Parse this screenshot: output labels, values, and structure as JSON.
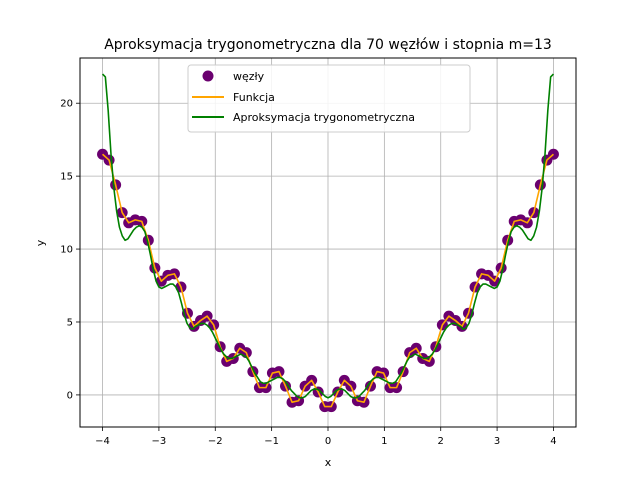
{
  "chart_data": {
    "type": "line",
    "title": "Aproksymacja trygonometryczna dla 70 węzłów i stopnia m=13",
    "xlabel": "x",
    "ylabel": "y",
    "xlim": [
      -4.4,
      4.4
    ],
    "ylim": [
      -2.2,
      23.1
    ],
    "xticks": [
      -4,
      -3,
      -2,
      -1,
      0,
      1,
      2,
      3,
      4
    ],
    "yticks": [
      0,
      5,
      10,
      15,
      20
    ],
    "grid": true,
    "legend_position": "top-center",
    "colors": {
      "nodes": "#6a006f",
      "function": "#ffa500",
      "approx": "#008000",
      "grid": "#b0b0b0"
    },
    "series": [
      {
        "name": "węzły",
        "kind": "scatter"
      },
      {
        "name": "Funkcja",
        "kind": "line"
      },
      {
        "name": "Aproksymacja trygonometryczna",
        "kind": "line"
      }
    ],
    "nodes": {
      "x": [
        -4.0,
        -3.884,
        -3.768,
        -3.652,
        -3.536,
        -3.42,
        -3.304,
        -3.188,
        -3.072,
        -2.957,
        -2.841,
        -2.725,
        -2.609,
        -2.493,
        -2.377,
        -2.261,
        -2.145,
        -2.029,
        -1.913,
        -1.797,
        -1.681,
        -1.565,
        -1.449,
        -1.333,
        -1.217,
        -1.101,
        -0.986,
        -0.87,
        -0.754,
        -0.638,
        -0.522,
        -0.406,
        -0.29,
        -0.174,
        -0.058,
        0.058,
        0.174,
        0.29,
        0.406,
        0.522,
        0.638,
        0.754,
        0.87,
        0.986,
        1.101,
        1.217,
        1.333,
        1.449,
        1.565,
        1.681,
        1.797,
        1.913,
        2.029,
        2.145,
        2.261,
        2.377,
        2.493,
        2.609,
        2.725,
        2.841,
        2.957,
        3.072,
        3.188,
        3.304,
        3.42,
        3.536,
        3.652,
        3.768,
        3.884,
        4.0
      ],
      "y": [
        16.5,
        16.1,
        14.4,
        12.5,
        11.8,
        12.0,
        11.9,
        10.6,
        8.7,
        7.8,
        8.2,
        8.3,
        7.4,
        5.6,
        4.7,
        5.1,
        5.4,
        4.8,
        3.3,
        2.3,
        2.5,
        3.2,
        2.9,
        1.6,
        0.5,
        0.5,
        1.5,
        1.6,
        0.6,
        -0.5,
        -0.4,
        0.6,
        1.0,
        0.2,
        -0.8,
        -0.8,
        0.2,
        1.0,
        0.6,
        -0.4,
        -0.5,
        0.6,
        1.6,
        1.5,
        0.5,
        0.5,
        1.6,
        2.9,
        3.2,
        2.5,
        2.3,
        3.3,
        4.8,
        5.4,
        5.1,
        4.7,
        5.6,
        7.4,
        8.3,
        8.2,
        7.8,
        8.7,
        10.6,
        11.9,
        12.0,
        11.8,
        12.5,
        14.4,
        16.1,
        16.5
      ]
    },
    "approx_curve": {
      "x": [
        -4.0,
        -3.95,
        -3.9,
        -3.85,
        -3.8,
        -3.75,
        -3.7,
        -3.65,
        -3.6,
        -3.55,
        -3.5,
        -3.45,
        -3.4,
        -3.35,
        -3.3,
        -3.25,
        -3.2,
        -3.15,
        -3.1,
        -3.05,
        -3.0,
        -2.95,
        -2.9,
        -2.85,
        -2.8,
        -2.75,
        -2.7,
        -2.65,
        -2.6,
        -2.55,
        -2.5,
        -2.45,
        -2.4,
        -2.35,
        -2.3,
        -2.25,
        -2.2,
        -2.15,
        -2.1,
        -2.05,
        -2.0,
        -1.95,
        -1.9,
        -1.85,
        -1.8,
        -1.75,
        -1.7,
        -1.65,
        -1.6,
        -1.55,
        -1.5,
        -1.45,
        -1.4,
        -1.35,
        -1.3,
        -1.25,
        -1.2,
        -1.15,
        -1.1,
        -1.05,
        -1.0,
        -0.95,
        -0.9,
        -0.85,
        -0.8,
        -0.75,
        -0.7,
        -0.65,
        -0.6,
        -0.55,
        -0.5,
        -0.45,
        -0.4,
        -0.35,
        -0.3,
        -0.25,
        -0.2,
        -0.15,
        -0.1,
        -0.05,
        0.0,
        0.05,
        0.1,
        0.15,
        0.2,
        0.25,
        0.3,
        0.35,
        0.4,
        0.45,
        0.5,
        0.55,
        0.6,
        0.65,
        0.7,
        0.75,
        0.8,
        0.85,
        0.9,
        0.95,
        1.0,
        1.05,
        1.1,
        1.15,
        1.2,
        1.25,
        1.3,
        1.35,
        1.4,
        1.45,
        1.5,
        1.55,
        1.6,
        1.65,
        1.7,
        1.75,
        1.8,
        1.85,
        1.9,
        1.95,
        2.0,
        2.05,
        2.1,
        2.15,
        2.2,
        2.25,
        2.3,
        2.35,
        2.4,
        2.45,
        2.5,
        2.55,
        2.6,
        2.65,
        2.7,
        2.75,
        2.8,
        2.85,
        2.9,
        2.95,
        3.0,
        3.05,
        3.1,
        3.15,
        3.2,
        3.25,
        3.3,
        3.35,
        3.4,
        3.45,
        3.5,
        3.55,
        3.6,
        3.65,
        3.7,
        3.75,
        3.8,
        3.85,
        3.9,
        3.95,
        4.0
      ],
      "y": [
        22.0,
        21.8,
        19.5,
        16.5,
        14.2,
        12.6,
        11.5,
        10.9,
        10.6,
        10.7,
        11.0,
        11.3,
        11.5,
        11.6,
        11.5,
        11.2,
        10.5,
        9.6,
        8.6,
        7.8,
        7.4,
        7.3,
        7.4,
        7.5,
        7.6,
        7.6,
        7.4,
        7.0,
        6.3,
        5.5,
        4.9,
        4.6,
        4.5,
        4.7,
        4.8,
        4.9,
        4.9,
        4.8,
        4.6,
        4.3,
        3.9,
        3.5,
        3.1,
        2.8,
        2.6,
        2.5,
        2.5,
        2.6,
        2.7,
        2.8,
        2.7,
        2.6,
        2.3,
        1.9,
        1.5,
        1.2,
        0.9,
        0.8,
        0.8,
        0.9,
        1.0,
        1.1,
        1.2,
        1.2,
        1.1,
        0.9,
        0.6,
        0.3,
        0.1,
        -0.1,
        -0.2,
        -0.2,
        -0.1,
        0.1,
        0.3,
        0.4,
        0.4,
        0.3,
        0.1,
        -0.1,
        -0.2,
        -0.1,
        0.1,
        0.3,
        0.4,
        0.4,
        0.3,
        0.1,
        -0.1,
        -0.2,
        -0.2,
        -0.1,
        0.1,
        0.3,
        0.6,
        0.9,
        1.1,
        1.2,
        1.2,
        1.1,
        1.0,
        0.9,
        0.8,
        0.8,
        0.9,
        1.2,
        1.5,
        1.9,
        2.3,
        2.6,
        2.7,
        2.8,
        2.7,
        2.6,
        2.5,
        2.5,
        2.6,
        2.8,
        3.1,
        3.5,
        3.9,
        4.3,
        4.6,
        4.8,
        4.9,
        4.9,
        4.8,
        4.7,
        4.5,
        4.6,
        4.9,
        5.5,
        6.3,
        7.0,
        7.4,
        7.6,
        7.6,
        7.5,
        7.4,
        7.3,
        7.4,
        7.8,
        8.6,
        9.6,
        10.5,
        11.2,
        11.5,
        11.6,
        11.5,
        11.3,
        11.0,
        10.7,
        10.6,
        10.9,
        11.5,
        12.6,
        14.2,
        16.5,
        19.5,
        21.8,
        22.0
      ]
    }
  }
}
